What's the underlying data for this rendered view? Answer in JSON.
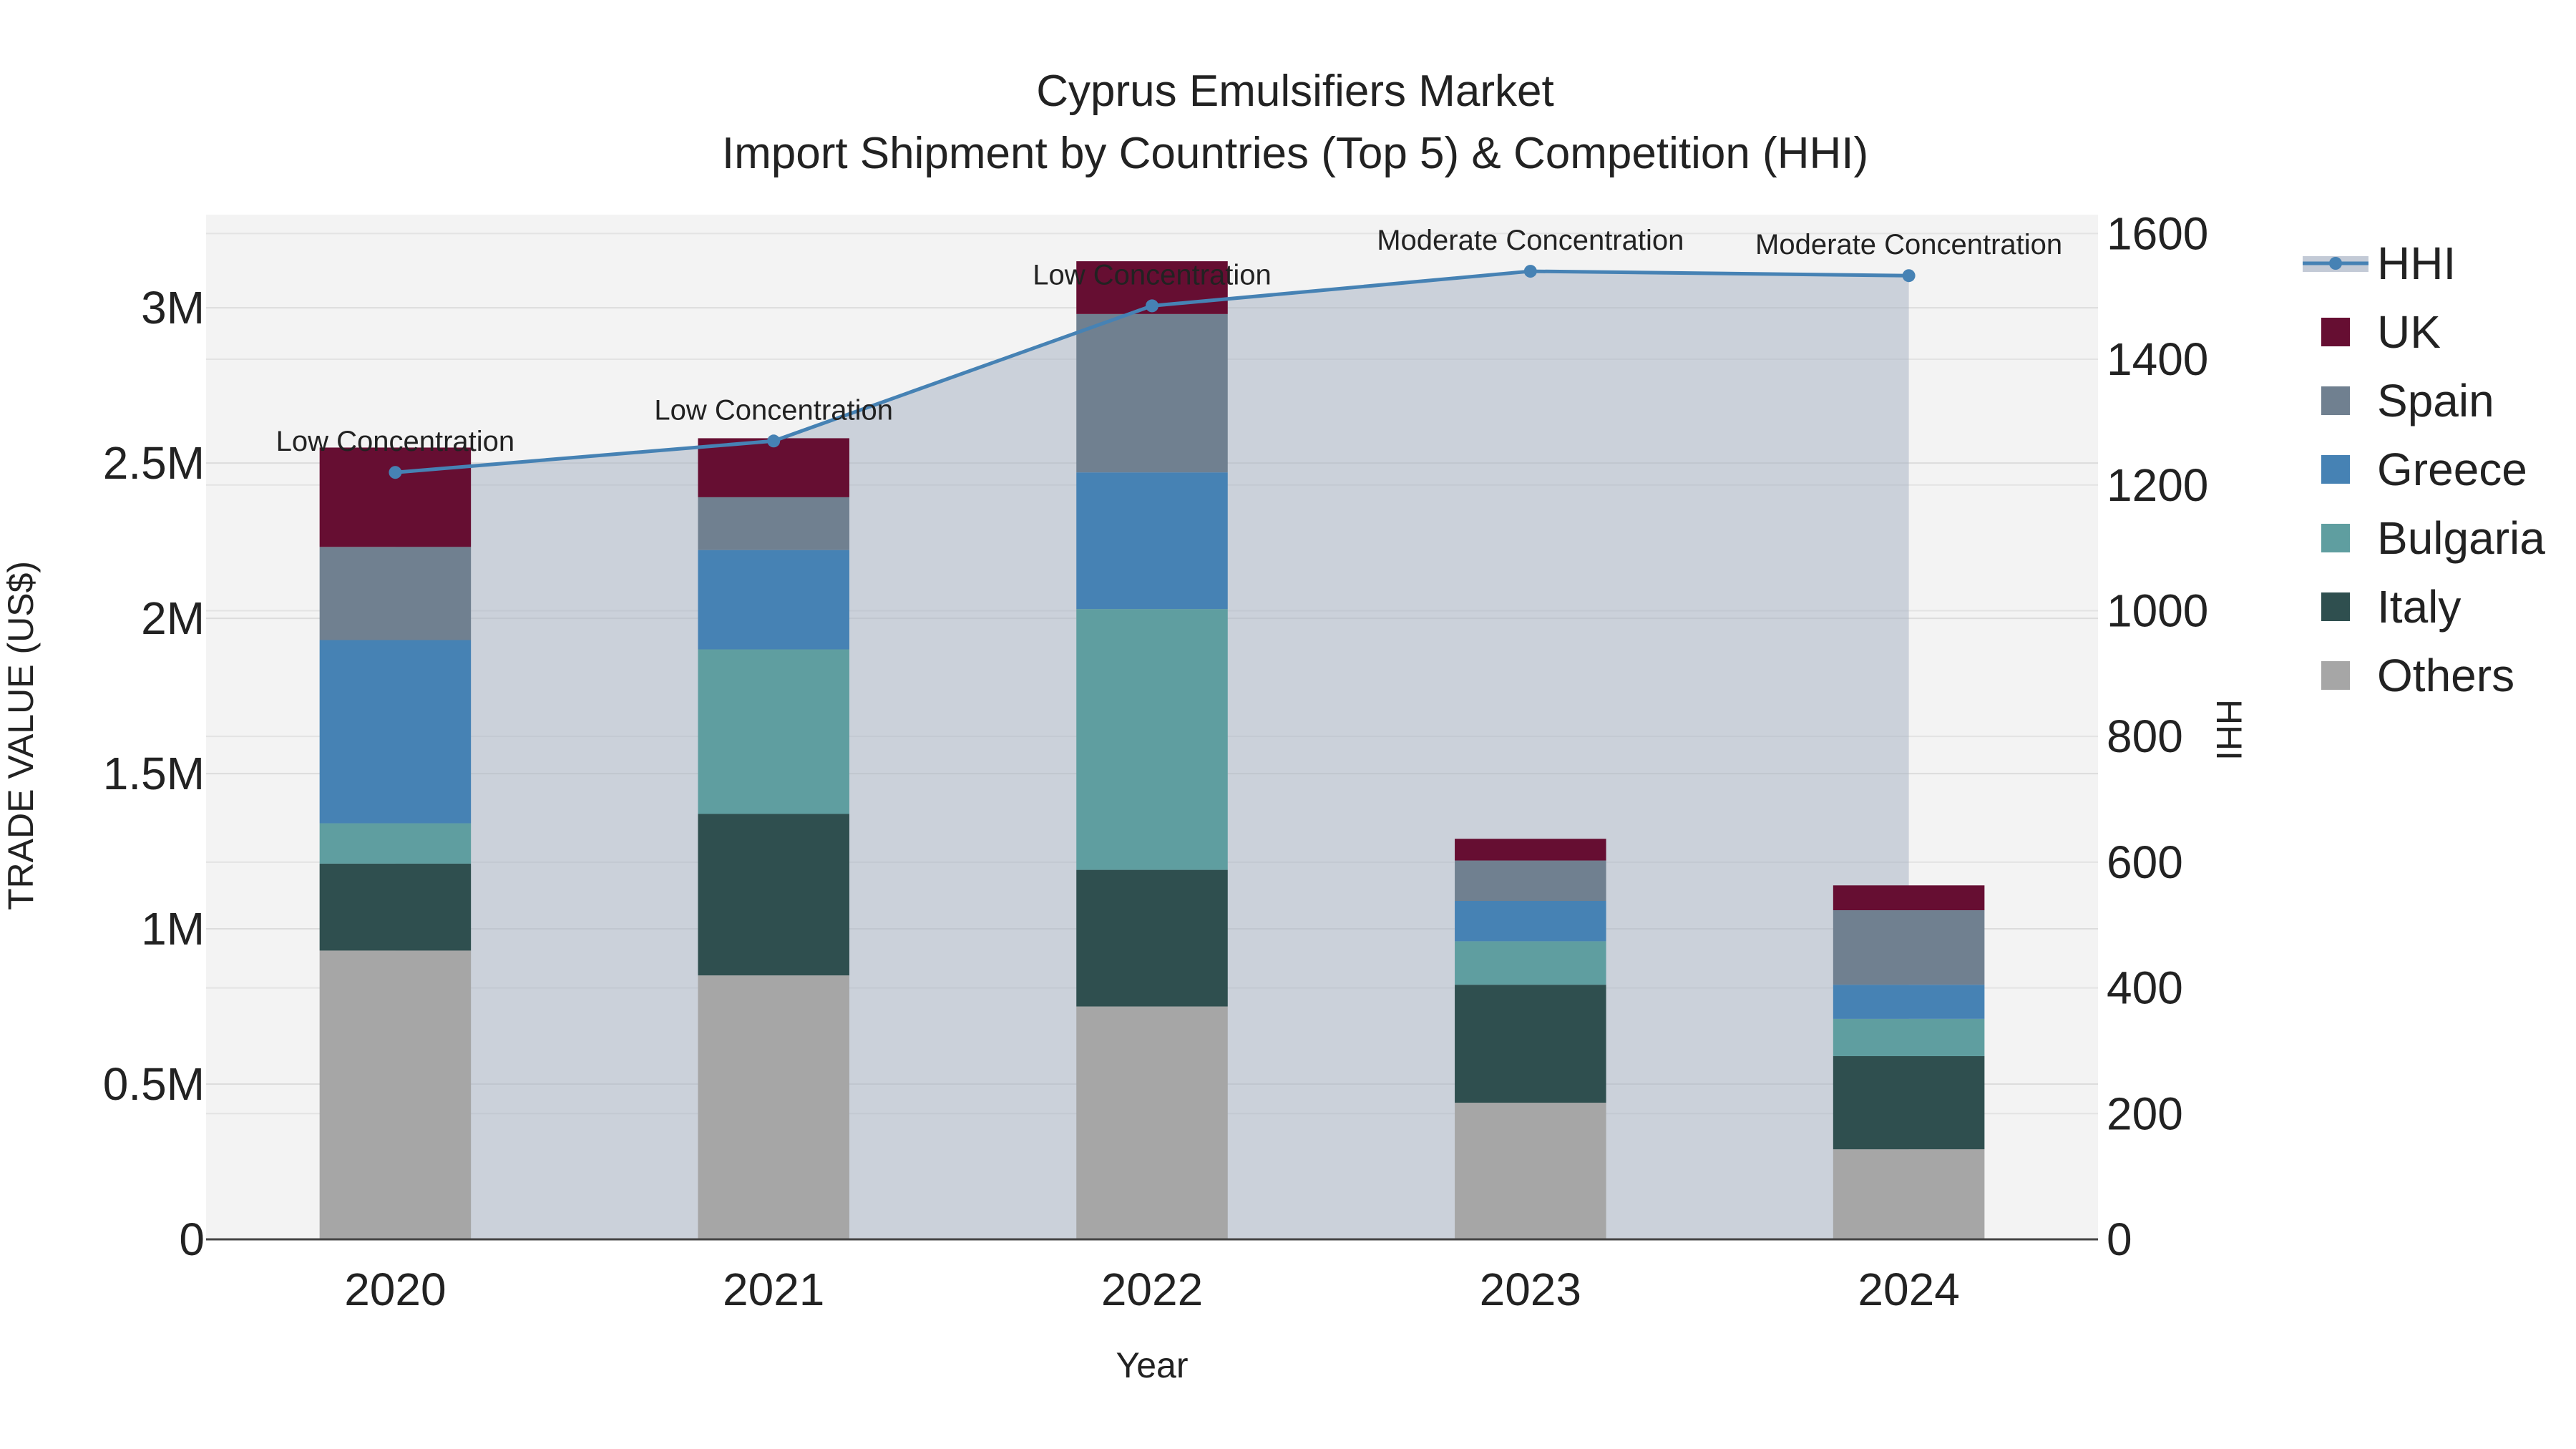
{
  "chart_data": {
    "type": "bar",
    "title": "Cyprus Emulsifiers Market",
    "subtitle": "Import Shipment by Countries (Top 5) & Competition (HHI)",
    "xlabel": "Year",
    "ylabel": "TRADE VALUE (US$)",
    "y2label": "HHI",
    "categories": [
      "2020",
      "2021",
      "2022",
      "2023",
      "2024"
    ],
    "ylim": [
      0,
      3300000
    ],
    "y2lim": [
      0,
      1630
    ],
    "y_ticks": [
      0,
      500000,
      1000000,
      1500000,
      2000000,
      2500000,
      3000000
    ],
    "y_tick_labels": [
      "0",
      "0.5M",
      "1M",
      "1.5M",
      "2M",
      "2.5M",
      "3M"
    ],
    "y2_ticks": [
      0,
      200,
      400,
      600,
      800,
      1000,
      1200,
      1400,
      1600
    ],
    "y2_tick_labels": [
      "0",
      "200",
      "400",
      "600",
      "800",
      "1000",
      "1200",
      "1400",
      "1600"
    ],
    "series": [
      {
        "name": "Others",
        "color": "#a6a6a6",
        "values": [
          930000,
          850000,
          750000,
          440000,
          290000
        ]
      },
      {
        "name": "Italy",
        "color": "#2f4f4f",
        "values": [
          280000,
          520000,
          440000,
          380000,
          300000
        ]
      },
      {
        "name": "Bulgaria",
        "color": "#5f9ea0",
        "values": [
          130000,
          530000,
          840000,
          140000,
          120000
        ]
      },
      {
        "name": "Greece",
        "color": "#4682b4",
        "values": [
          590000,
          320000,
          440000,
          130000,
          110000
        ]
      },
      {
        "name": "Spain",
        "color": "#708090",
        "values": [
          300000,
          170000,
          510000,
          130000,
          240000
        ]
      },
      {
        "name": "UK",
        "color": "#660e32",
        "values": [
          320000,
          190000,
          170000,
          70000,
          80000
        ]
      }
    ],
    "hhi": {
      "name": "HHI",
      "color": "#4682b4",
      "values": [
        1220,
        1270,
        1485,
        1540,
        1533
      ],
      "labels": [
        "Low Concentration",
        "Low Concentration",
        "Low Concentration",
        "Moderate Concentration",
        "Moderate Concentration"
      ]
    },
    "legend": [
      "HHI",
      "UK",
      "Spain",
      "Greece",
      "Bulgaria",
      "Italy",
      "Others"
    ],
    "legend_position": "right",
    "plot_bg": "#f3f3f3",
    "grid": true
  }
}
